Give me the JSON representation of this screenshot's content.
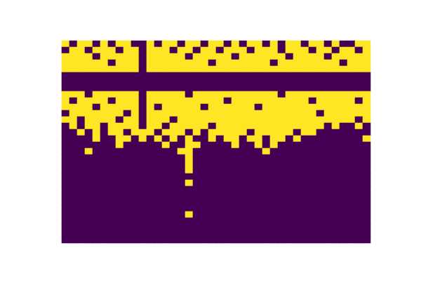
{
  "chart_data": {
    "type": "heatmap",
    "color": "viridis",
    "zlim": [
      0,
      1
    ],
    "tick_labels": false,
    "cells": [
      [
        1,
        0,
        1,
        1,
        0,
        1,
        0,
        1,
        1,
        0,
        0,
        1,
        0,
        1,
        1,
        0,
        1,
        1,
        0,
        1,
        1,
        0,
        1,
        0,
        1,
        1,
        0,
        1,
        0,
        1,
        1,
        0,
        1,
        1,
        0,
        1,
        0,
        0,
        1,
        1
      ],
      [
        0,
        1,
        1,
        0,
        1,
        1,
        1,
        0,
        1,
        1,
        0,
        1,
        1,
        1,
        0,
        1,
        1,
        0,
        1,
        1,
        0,
        1,
        1,
        1,
        0,
        1,
        1,
        1,
        0,
        1,
        1,
        1,
        0,
        1,
        1,
        0,
        1,
        1,
        0,
        1
      ],
      [
        1,
        1,
        1,
        1,
        0,
        1,
        1,
        1,
        1,
        1,
        0,
        1,
        1,
        1,
        1,
        1,
        0,
        1,
        1,
        1,
        1,
        1,
        0,
        1,
        1,
        1,
        1,
        1,
        1,
        0,
        1,
        1,
        1,
        1,
        0,
        1,
        1,
        1,
        1,
        1
      ],
      [
        1,
        1,
        1,
        1,
        1,
        1,
        0,
        1,
        1,
        1,
        0,
        1,
        1,
        1,
        1,
        1,
        1,
        1,
        1,
        0,
        1,
        1,
        1,
        1,
        1,
        1,
        1,
        0,
        1,
        1,
        1,
        1,
        1,
        1,
        1,
        1,
        0,
        1,
        1,
        1
      ],
      [
        1,
        1,
        1,
        1,
        1,
        1,
        1,
        1,
        1,
        1,
        0,
        1,
        1,
        1,
        1,
        1,
        1,
        1,
        1,
        1,
        1,
        1,
        1,
        1,
        1,
        1,
        1,
        1,
        1,
        1,
        1,
        1,
        1,
        1,
        1,
        1,
        1,
        1,
        1,
        1
      ],
      [
        0,
        0,
        0,
        0,
        0,
        0,
        0,
        0,
        0,
        0,
        0,
        0,
        0,
        0,
        0,
        0,
        0,
        0,
        0,
        0,
        0,
        0,
        0,
        0,
        0,
        0,
        0,
        0,
        0,
        0,
        0,
        0,
        0,
        0,
        0,
        0,
        0,
        0,
        0,
        0
      ],
      [
        0,
        0,
        0,
        0,
        0,
        0,
        0,
        0,
        0,
        0,
        0,
        0,
        0,
        0,
        0,
        0,
        0,
        0,
        0,
        0,
        0,
        0,
        0,
        0,
        0,
        0,
        0,
        0,
        0,
        0,
        0,
        0,
        0,
        0,
        0,
        0,
        0,
        0,
        0,
        0
      ],
      [
        0,
        0,
        0,
        0,
        0,
        0,
        0,
        0,
        0,
        0,
        0,
        0,
        0,
        0,
        0,
        0,
        0,
        0,
        0,
        0,
        0,
        0,
        0,
        0,
        0,
        0,
        0,
        0,
        0,
        0,
        0,
        0,
        0,
        0,
        0,
        0,
        0,
        0,
        0,
        0
      ],
      [
        1,
        1,
        1,
        0,
        1,
        1,
        1,
        1,
        1,
        1,
        0,
        1,
        1,
        1,
        1,
        1,
        0,
        1,
        1,
        1,
        1,
        1,
        1,
        1,
        1,
        1,
        1,
        1,
        0,
        1,
        1,
        1,
        1,
        1,
        1,
        1,
        1,
        1,
        1,
        1
      ],
      [
        1,
        0,
        1,
        1,
        1,
        1,
        0,
        1,
        1,
        1,
        0,
        1,
        1,
        1,
        1,
        1,
        1,
        1,
        1,
        1,
        1,
        0,
        1,
        1,
        1,
        1,
        1,
        1,
        1,
        1,
        1,
        1,
        0,
        1,
        1,
        1,
        1,
        1,
        0,
        1
      ],
      [
        1,
        1,
        1,
        1,
        0,
        1,
        1,
        1,
        1,
        1,
        0,
        1,
        0,
        1,
        1,
        1,
        1,
        1,
        0,
        1,
        1,
        1,
        1,
        1,
        1,
        0,
        1,
        1,
        1,
        1,
        1,
        1,
        1,
        1,
        1,
        1,
        1,
        1,
        1,
        1
      ],
      [
        0,
        1,
        1,
        1,
        1,
        1,
        1,
        1,
        0,
        1,
        0,
        1,
        1,
        1,
        1,
        1,
        1,
        1,
        1,
        1,
        1,
        1,
        1,
        1,
        1,
        1,
        1,
        1,
        1,
        1,
        1,
        1,
        1,
        0,
        1,
        1,
        1,
        1,
        1,
        1
      ],
      [
        1,
        1,
        0,
        1,
        1,
        1,
        1,
        0,
        1,
        1,
        0,
        1,
        1,
        1,
        0,
        1,
        1,
        1,
        1,
        1,
        1,
        1,
        1,
        1,
        1,
        1,
        1,
        1,
        1,
        1,
        1,
        1,
        1,
        1,
        1,
        1,
        1,
        1,
        0,
        1
      ],
      [
        0,
        1,
        0,
        1,
        1,
        0,
        1,
        1,
        1,
        1,
        0,
        1,
        1,
        0,
        1,
        1,
        1,
        1,
        1,
        0,
        1,
        1,
        1,
        1,
        1,
        1,
        1,
        1,
        1,
        1,
        1,
        1,
        1,
        1,
        0,
        1,
        0,
        0,
        1,
        0
      ],
      [
        0,
        0,
        1,
        0,
        1,
        0,
        1,
        1,
        0,
        1,
        1,
        1,
        0,
        1,
        1,
        1,
        0,
        1,
        0,
        1,
        1,
        1,
        1,
        1,
        0,
        1,
        1,
        1,
        1,
        1,
        0,
        1,
        1,
        0,
        0,
        0,
        0,
        0,
        0,
        0
      ],
      [
        0,
        0,
        0,
        0,
        1,
        0,
        0,
        1,
        1,
        0,
        1,
        0,
        1,
        0,
        1,
        0,
        1,
        0,
        0,
        1,
        0,
        1,
        1,
        0,
        1,
        1,
        0,
        1,
        1,
        0,
        1,
        0,
        0,
        0,
        0,
        0,
        0,
        0,
        0,
        1
      ],
      [
        0,
        0,
        0,
        0,
        0,
        0,
        0,
        1,
        0,
        0,
        0,
        0,
        0,
        1,
        0,
        0,
        1,
        1,
        0,
        0,
        0,
        0,
        1,
        0,
        0,
        1,
        0,
        1,
        0,
        0,
        0,
        0,
        0,
        0,
        0,
        0,
        0,
        0,
        0,
        0
      ],
      [
        0,
        0,
        0,
        1,
        0,
        0,
        0,
        0,
        0,
        0,
        0,
        0,
        0,
        0,
        0,
        1,
        1,
        0,
        0,
        0,
        0,
        0,
        0,
        0,
        0,
        0,
        1,
        0,
        0,
        0,
        0,
        0,
        0,
        0,
        0,
        0,
        0,
        0,
        0,
        0
      ],
      [
        0,
        0,
        0,
        0,
        0,
        0,
        0,
        0,
        0,
        0,
        0,
        0,
        0,
        0,
        0,
        0,
        1,
        0,
        0,
        0,
        0,
        0,
        0,
        0,
        0,
        0,
        0,
        0,
        0,
        0,
        0,
        0,
        0,
        0,
        0,
        0,
        0,
        0,
        0,
        0
      ],
      [
        0,
        0,
        0,
        0,
        0,
        0,
        0,
        0,
        0,
        0,
        0,
        0,
        0,
        0,
        0,
        0,
        1,
        0,
        0,
        0,
        0,
        0,
        0,
        0,
        0,
        0,
        0,
        0,
        0,
        0,
        0,
        0,
        0,
        0,
        0,
        0,
        0,
        0,
        0,
        0
      ],
      [
        0,
        0,
        0,
        0,
        0,
        0,
        0,
        0,
        0,
        0,
        0,
        0,
        0,
        0,
        0,
        0,
        1,
        0,
        0,
        0,
        0,
        0,
        0,
        0,
        0,
        0,
        0,
        0,
        0,
        0,
        0,
        0,
        0,
        0,
        0,
        0,
        0,
        0,
        0,
        0
      ],
      [
        0,
        0,
        0,
        0,
        0,
        0,
        0,
        0,
        0,
        0,
        0,
        0,
        0,
        0,
        0,
        0,
        0,
        0,
        0,
        0,
        0,
        0,
        0,
        0,
        0,
        0,
        0,
        0,
        0,
        0,
        0,
        0,
        0,
        0,
        0,
        0,
        0,
        0,
        0,
        0
      ],
      [
        0,
        0,
        0,
        0,
        0,
        0,
        0,
        0,
        0,
        0,
        0,
        0,
        0,
        0,
        0,
        0,
        1,
        0,
        0,
        0,
        0,
        0,
        0,
        0,
        0,
        0,
        0,
        0,
        0,
        0,
        0,
        0,
        0,
        0,
        0,
        0,
        0,
        0,
        0,
        0
      ],
      [
        0,
        0,
        0,
        0,
        0,
        0,
        0,
        0,
        0,
        0,
        0,
        0,
        0,
        0,
        0,
        0,
        0,
        0,
        0,
        0,
        0,
        0,
        0,
        0,
        0,
        0,
        0,
        0,
        0,
        0,
        0,
        0,
        0,
        0,
        0,
        0,
        0,
        0,
        0,
        0
      ],
      [
        0,
        0,
        0,
        0,
        0,
        0,
        0,
        0,
        0,
        0,
        0,
        0,
        0,
        0,
        0,
        0,
        0,
        0,
        0,
        0,
        0,
        0,
        0,
        0,
        0,
        0,
        0,
        0,
        0,
        0,
        0,
        0,
        0,
        0,
        0,
        0,
        0,
        0,
        0,
        0
      ],
      [
        0,
        0,
        0,
        0,
        0,
        0,
        0,
        0,
        0,
        0,
        0,
        0,
        0,
        0,
        0,
        0,
        0,
        0,
        0,
        0,
        0,
        0,
        0,
        0,
        0,
        0,
        0,
        0,
        0,
        0,
        0,
        0,
        0,
        0,
        0,
        0,
        0,
        0,
        0,
        0
      ],
      [
        0,
        0,
        0,
        0,
        0,
        0,
        0,
        0,
        0,
        0,
        0,
        0,
        0,
        0,
        0,
        0,
        0,
        0,
        0,
        0,
        0,
        0,
        0,
        0,
        0,
        0,
        0,
        0,
        0,
        0,
        0,
        0,
        0,
        0,
        0,
        0,
        0,
        0,
        0,
        0
      ],
      [
        0,
        0,
        0,
        0,
        0,
        0,
        0,
        0,
        0,
        0,
        0,
        0,
        0,
        0,
        0,
        0,
        1,
        0,
        0,
        0,
        0,
        0,
        0,
        0,
        0,
        0,
        0,
        0,
        0,
        0,
        0,
        0,
        0,
        0,
        0,
        0,
        0,
        0,
        0,
        0
      ],
      [
        0,
        0,
        0,
        0,
        0,
        0,
        0,
        0,
        0,
        0,
        0,
        0,
        0,
        0,
        0,
        0,
        0,
        0,
        0,
        0,
        0,
        0,
        0,
        0,
        0,
        0,
        0,
        0,
        0,
        0,
        0,
        0,
        0,
        0,
        0,
        0,
        0,
        0,
        0,
        0
      ],
      [
        0,
        0,
        0,
        0,
        0,
        0,
        0,
        0,
        0,
        0,
        0,
        0,
        0,
        0,
        0,
        0,
        0,
        0,
        0,
        0,
        0,
        0,
        0,
        0,
        0,
        0,
        0,
        0,
        0,
        0,
        0,
        0,
        0,
        0,
        0,
        0,
        0,
        0,
        0,
        0
      ],
      [
        0,
        0,
        0,
        0,
        0,
        0,
        0,
        0,
        0,
        0,
        0,
        0,
        0,
        0,
        0,
        0,
        0,
        0,
        0,
        0,
        0,
        0,
        0,
        0,
        0,
        0,
        0,
        0,
        0,
        0,
        0,
        0,
        0,
        0,
        0,
        0,
        0,
        0,
        0,
        0
      ],
      [
        0,
        0,
        0,
        0,
        0,
        0,
        0,
        0,
        0,
        0,
        0,
        0,
        0,
        0,
        0,
        0,
        0,
        0,
        0,
        0,
        0,
        0,
        0,
        0,
        0,
        0,
        0,
        0,
        0,
        0,
        0,
        0,
        0,
        0,
        0,
        0,
        0,
        0,
        0,
        0
      ]
    ]
  }
}
